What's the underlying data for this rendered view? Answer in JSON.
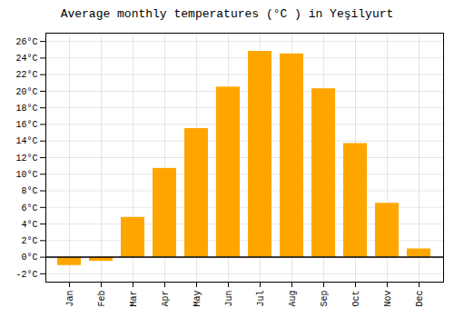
{
  "chart_data": {
    "type": "bar",
    "title": "Average monthly temperatures (°C ) in Yeşilyurt",
    "categories": [
      "Jan",
      "Feb",
      "Mar",
      "Apr",
      "May",
      "Jun",
      "Jul",
      "Aug",
      "Sep",
      "Oct",
      "Nov",
      "Dec"
    ],
    "values": [
      -1.0,
      -0.5,
      4.8,
      10.7,
      15.5,
      20.5,
      24.8,
      24.5,
      20.3,
      13.7,
      6.5,
      1.0
    ],
    "color": "#FFA500",
    "ylim": [
      -3,
      27
    ],
    "yticks": [
      {
        "value": -2,
        "label": "-2°C"
      },
      {
        "value": 0,
        "label": "0°C"
      },
      {
        "value": 2,
        "label": "2°C"
      },
      {
        "value": 4,
        "label": "4°C"
      },
      {
        "value": 6,
        "label": "6°C"
      },
      {
        "value": 8,
        "label": "8°C"
      },
      {
        "value": 10,
        "label": "10°C"
      },
      {
        "value": 12,
        "label": "12°C"
      },
      {
        "value": 14,
        "label": "14°C"
      },
      {
        "value": 16,
        "label": "16°C"
      },
      {
        "value": 18,
        "label": "18°C"
      },
      {
        "value": 20,
        "label": "20°C"
      },
      {
        "value": 22,
        "label": "22°C"
      },
      {
        "value": 24,
        "label": "24°C"
      },
      {
        "value": 26,
        "label": "26°C"
      }
    ],
    "grid": true
  }
}
